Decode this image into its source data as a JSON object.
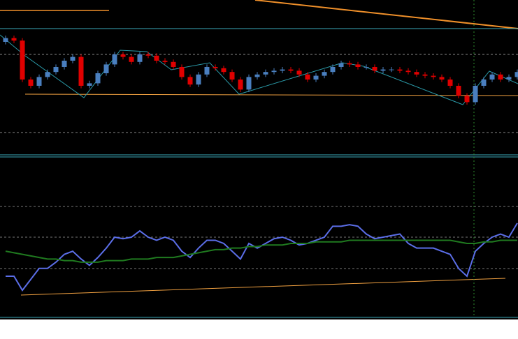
{
  "chart_data": [
    {
      "type": "candlestick",
      "ylim": [
        0,
        100
      ],
      "up_color": "#4a7fbf",
      "down_color": "#e00000",
      "open": [
        90,
        93,
        91,
        60,
        55,
        62,
        66,
        70,
        75,
        78,
        55,
        57,
        65,
        72,
        80,
        78,
        74,
        80,
        79,
        75,
        74,
        70,
        62,
        56,
        64,
        70,
        69,
        66,
        60,
        52,
        62,
        64,
        66,
        67,
        68,
        67,
        64,
        60,
        63,
        66,
        70,
        73,
        72,
        70,
        70,
        67,
        68,
        68,
        67,
        66,
        64,
        63,
        62,
        60,
        55,
        47,
        42,
        55,
        60,
        64,
        60,
        62
      ],
      "high": [
        95,
        95,
        93,
        62,
        64,
        68,
        72,
        77,
        80,
        80,
        59,
        67,
        74,
        82,
        82,
        80,
        82,
        82,
        81,
        77,
        76,
        72,
        64,
        66,
        72,
        72,
        71,
        68,
        62,
        64,
        66,
        68,
        69,
        70,
        70,
        69,
        66,
        65,
        68,
        72,
        75,
        75,
        74,
        72,
        72,
        70,
        70,
        70,
        69,
        68,
        66,
        65,
        64,
        62,
        57,
        49,
        57,
        62,
        66,
        66,
        64,
        68
      ],
      "low": [
        88,
        89,
        58,
        53,
        53,
        60,
        64,
        68,
        73,
        53,
        53,
        55,
        63,
        70,
        76,
        72,
        72,
        77,
        73,
        72,
        68,
        60,
        54,
        54,
        62,
        67,
        64,
        58,
        50,
        50,
        60,
        62,
        64,
        65,
        65,
        62,
        58,
        58,
        61,
        64,
        68,
        70,
        68,
        68,
        65,
        65,
        66,
        65,
        64,
        62,
        61,
        60,
        58,
        53,
        45,
        40,
        40,
        53,
        58,
        58,
        58,
        60
      ],
      "close": [
        93,
        91,
        60,
        55,
        62,
        66,
        70,
        75,
        78,
        55,
        57,
        65,
        72,
        80,
        78,
        74,
        80,
        79,
        75,
        74,
        70,
        62,
        56,
        64,
        70,
        69,
        66,
        60,
        52,
        62,
        64,
        66,
        67,
        68,
        67,
        64,
        60,
        63,
        66,
        70,
        73,
        72,
        70,
        70,
        67,
        68,
        68,
        67,
        66,
        64,
        63,
        62,
        60,
        55,
        47,
        42,
        55,
        60,
        64,
        60,
        62,
        66
      ]
    },
    {
      "type": "line",
      "ylim": [
        0,
        100
      ],
      "series": [
        {
          "color": "#5b6ee8",
          "values": [
            25,
            25,
            16,
            23,
            30,
            30,
            34,
            39,
            41,
            36,
            32,
            37,
            43,
            50,
            49,
            50,
            54,
            50,
            48,
            50,
            48,
            41,
            37,
            43,
            48,
            48,
            46,
            41,
            36,
            46,
            43,
            46,
            49,
            50,
            48,
            45,
            46,
            48,
            50,
            57,
            57,
            58,
            57,
            52,
            49,
            50,
            51,
            52,
            46,
            43,
            43,
            43,
            41,
            39,
            30,
            25,
            41,
            46,
            50,
            52,
            50,
            59
          ]
        },
        {
          "color": "#1f7a1f",
          "values": [
            41,
            40,
            39,
            38,
            37,
            36,
            36,
            35,
            35,
            34,
            34,
            34,
            35,
            35,
            35,
            36,
            36,
            36,
            37,
            37,
            37,
            38,
            39,
            40,
            41,
            42,
            42,
            43,
            43,
            44,
            44,
            45,
            45,
            45,
            46,
            46,
            46,
            47,
            47,
            47,
            47,
            48,
            48,
            48,
            48,
            48,
            48,
            48,
            48,
            48,
            48,
            48,
            48,
            48,
            47,
            46,
            46,
            47,
            47,
            48,
            48,
            48
          ]
        }
      ]
    }
  ]
}
